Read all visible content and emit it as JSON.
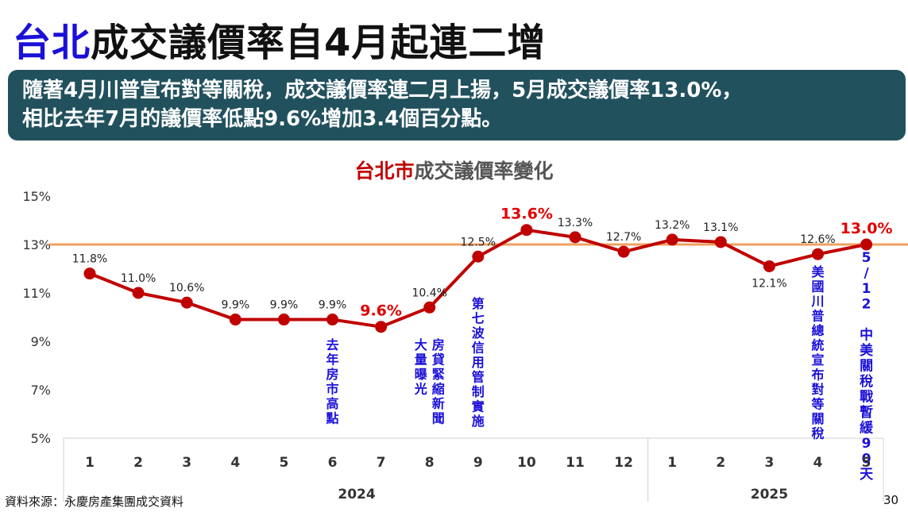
{
  "title": {
    "highlight": "台北",
    "rest": "成交議價率自4月起連二增"
  },
  "banner": {
    "line1": "隨著4月川普宣布對等關稅，成交議價率連二月上揚，5月成交議價率13.0%，",
    "line2": "相比去年7月的議價率低點9.6%增加3.4個百分點。"
  },
  "chart_title": {
    "highlight": "台北市",
    "rest": "成交議價率變化"
  },
  "source": "資料來源：永慶房產集團成交資料",
  "page_number": "30",
  "colors": {
    "title_blue": "#1a10d8",
    "banner_bg": "#22515e",
    "line": "#c00000",
    "reference_line": "#f0a060",
    "annotation": "#1a10d8",
    "highlight_label": "#e00000"
  },
  "chart_data": {
    "type": "line",
    "ylim": [
      5,
      15
    ],
    "yticks": [
      "5%",
      "7%",
      "9%",
      "11%",
      "13%",
      "15%"
    ],
    "yticks_values": [
      5,
      7,
      9,
      11,
      13,
      15
    ],
    "reference_line": 13,
    "categories": [
      "1",
      "2",
      "3",
      "4",
      "5",
      "6",
      "7",
      "8",
      "9",
      "10",
      "11",
      "12",
      "1",
      "2",
      "3",
      "4",
      "5"
    ],
    "year_groups": [
      {
        "label": "2024",
        "start": 0,
        "end": 11
      },
      {
        "label": "2025",
        "start": 12,
        "end": 16
      }
    ],
    "series": [
      {
        "values": [
          11.8,
          11.0,
          10.6,
          9.9,
          9.9,
          9.9,
          9.6,
          10.4,
          12.5,
          13.6,
          13.3,
          12.7,
          13.2,
          13.1,
          12.1,
          12.6,
          13.0
        ]
      }
    ],
    "data_labels": [
      "11.8%",
      "11.0%",
      "10.6%",
      "9.9%",
      "9.9%",
      "9.9%",
      "9.6%",
      "10.4%",
      "12.5%",
      "13.6%",
      "13.3%",
      "12.7%",
      "13.2%",
      "13.1%",
      "12.1%",
      "12.6%",
      "13.0%"
    ],
    "highlighted_indices": [
      6,
      9,
      16
    ],
    "annotations": [
      {
        "index": 5,
        "lines": [
          "去年房市高點"
        ]
      },
      {
        "index": 7,
        "lines": [
          "房貸緊縮新聞",
          "大量曝光"
        ]
      },
      {
        "index": 8,
        "lines": [
          "第七波信用管制實施"
        ]
      },
      {
        "index": 15,
        "lines": [
          "美國川普總統宣布對等關稅"
        ]
      },
      {
        "index": 16,
        "lines": [
          "5/12 中美關稅戰暫緩90天"
        ]
      }
    ]
  }
}
